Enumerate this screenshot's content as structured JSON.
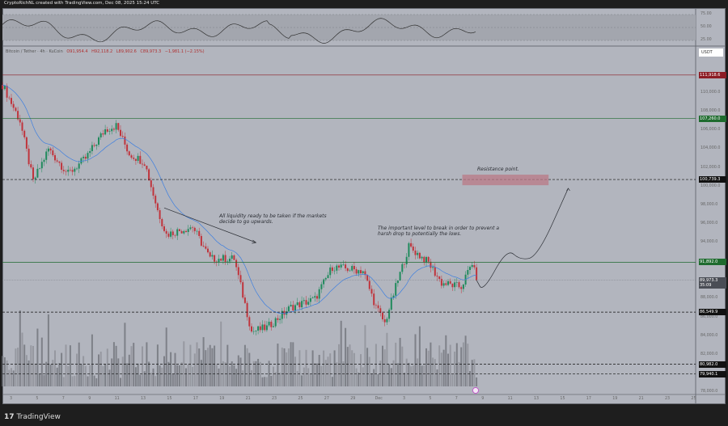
{
  "header": {
    "title": "CryptoRichNL created with TradingView.com, Dec 08, 2025 15:24 UTC"
  },
  "legend": {
    "symbol": "Bitcoin / Tether · 4h · KuCoin",
    "open": "O91,954.4",
    "high": "H92,118.2",
    "low": "L89,902.6",
    "close": "C89,973.3",
    "change": "−1,981.1 (−2.15%)"
  },
  "currency_button": "USDT",
  "footer": {
    "brand": "TradingView"
  },
  "colors": {
    "up": "#1f8a5c",
    "down": "#c0343c",
    "ema": "#3d7fe0",
    "resistance_zone": "#b97a86",
    "level_red": "#8c1c24",
    "level_green": "#1e6b2e",
    "background": "#b2b5be"
  },
  "chart_data": {
    "type": "candlestick",
    "timeframe": "4h",
    "ylim": [
      77000,
      112500
    ],
    "y_ticks": [
      "110,000.0",
      "108,000.0",
      "106,000.0",
      "104,000.0",
      "102,000.0",
      "100,000.0",
      "98,000.0",
      "96,000.0",
      "94,000.0",
      "88,000.0",
      "86,000.0",
      "84,000.0",
      "82,000.0",
      "78,000.0"
    ],
    "x_ticks": [
      "3",
      "5",
      "7",
      "9",
      "11",
      "13",
      "15",
      "17",
      "19",
      "21",
      "23",
      "25",
      "27",
      "29",
      "Dec",
      "3",
      "5",
      "7",
      "9",
      "11",
      "13",
      "15",
      "17",
      "19",
      "21",
      "23",
      "25"
    ],
    "price_path": [
      [
        "2025-11-02T08:00",
        110865
      ],
      [
        "2025-11-03T16:00",
        107000
      ],
      [
        "2025-11-04T16:00",
        100500
      ],
      [
        "2025-11-05T20:00",
        104000
      ],
      [
        "2025-11-07T08:00",
        101350
      ],
      [
        "2025-11-08T16:00",
        103000
      ],
      [
        "2025-11-10T04:00",
        106100
      ],
      [
        "2025-11-11T00:00",
        106500
      ],
      [
        "2025-11-12T00:00",
        103500
      ],
      [
        "2025-11-13T04:00",
        102600
      ],
      [
        "2025-11-14T04:00",
        97450
      ],
      [
        "2025-11-14T20:00",
        94860
      ],
      [
        "2025-11-16T20:00",
        95700
      ],
      [
        "2025-11-18T04:00",
        92270
      ],
      [
        "2025-11-20T00:00",
        92270
      ],
      [
        "2025-11-21T08:00",
        84480
      ],
      [
        "2025-11-22T12:00",
        84900
      ],
      [
        "2025-11-24T08:00",
        87080
      ],
      [
        "2025-11-26T04:00",
        87940
      ],
      [
        "2025-11-27T12:00",
        91400
      ],
      [
        "2025-11-29T20:00",
        90970
      ],
      [
        "2025-11-30T20:00",
        87080
      ],
      [
        "2025-12-01T12:00",
        85350
      ],
      [
        "2025-12-02T08:00",
        89240
      ],
      [
        "2025-12-03T08:00",
        93560
      ],
      [
        "2025-12-04T20:00",
        91830
      ],
      [
        "2025-12-05T20:00",
        89670
      ],
      [
        "2025-12-07T08:00",
        89240
      ],
      [
        "2025-12-08T04:00",
        91830
      ],
      [
        "2025-12-08T12:00",
        89973.3
      ]
    ],
    "projection": [
      [
        "2025-12-08T12:00",
        89973
      ],
      [
        "2025-12-09T00:00",
        88700
      ],
      [
        "2025-12-10T20:00",
        93400
      ],
      [
        "2025-12-11T20:00",
        92100
      ],
      [
        "2025-12-13T04:00",
        92500
      ],
      [
        "2025-12-15T12:00",
        99800
      ]
    ],
    "levels": [
      {
        "price": "111,918.6",
        "value": 111918.6,
        "style": "solid",
        "color": "#8c1c24"
      },
      {
        "price": "107,260.0",
        "value": 107260,
        "style": "solid",
        "color": "#1e6b2e"
      },
      {
        "price": "100,739.3",
        "value": 100739.3,
        "style": "dashed",
        "color": "#111111"
      },
      {
        "price": "91,892.0",
        "value": 91892,
        "style": "solid",
        "color": "#1e6b2e"
      },
      {
        "price": "86,549.9",
        "value": 86549.9,
        "style": "dashed",
        "color": "#111111"
      },
      {
        "price": "80,982.0",
        "value": 80982,
        "style": "dashed",
        "color": "#111111"
      },
      {
        "price": "79,940.1",
        "value": 79940.1,
        "style": "dashed",
        "color": "#111111"
      }
    ],
    "current_price": {
      "price": "89,973.3",
      "countdown": "35:09",
      "value": 89973.3
    },
    "resistance_zone": {
      "from": "2025-12-07T10:00",
      "to": "2025-12-14T00:00",
      "low": 100130,
      "high": 101260
    },
    "annotations": [
      {
        "text": "Resistance point."
      },
      {
        "text": "All liquidity ready to be taken if the markets decide to go upwards."
      },
      {
        "text": "The important level to break in order to prevent a harsh drop to potentially the lows."
      }
    ],
    "arrow": [
      [
        "2025-11-14T16:00",
        97700
      ],
      [
        "2025-11-21T16:00",
        94000
      ]
    ],
    "rsi": {
      "ticks": [
        "75.00",
        "50.00",
        "25.00"
      ],
      "band": [
        25,
        75
      ]
    }
  }
}
